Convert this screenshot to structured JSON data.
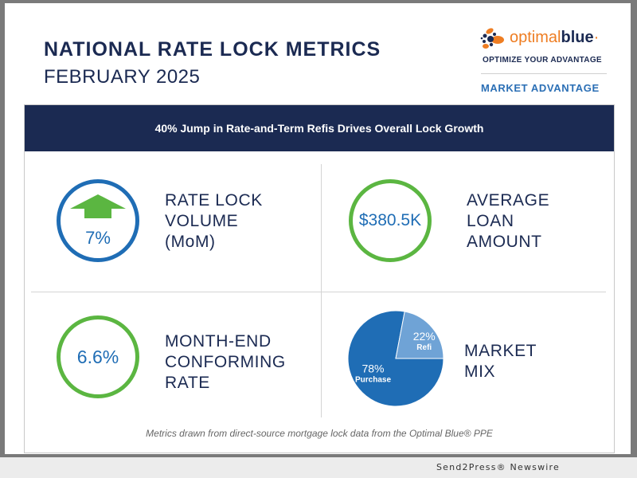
{
  "header": {
    "title": "NATIONAL RATE LOCK METRICS",
    "subtitle": "FEBRUARY 2025"
  },
  "brand": {
    "logo_word_1": "optimal",
    "logo_word_2": "blue",
    "logo_mark": "·",
    "tagline": "OPTIMIZE YOUR ADVANTAGE",
    "section": "MARKET ADVANTAGE",
    "colors": {
      "orange": "#ee7d22",
      "navy": "#1b2a52",
      "blue": "#1f6db5",
      "green": "#5bb641"
    }
  },
  "banner": {
    "headline": "40% Jump in Rate-and-Term Refis Drives Overall Lock Growth"
  },
  "metrics": [
    {
      "value": "7%",
      "icon": "up-arrow-icon",
      "label_lines": [
        "RATE LOCK",
        "VOLUME",
        "(MoM)"
      ]
    },
    {
      "value": "$380.5K",
      "label_lines": [
        "AVERAGE",
        "LOAN",
        "AMOUNT"
      ]
    },
    {
      "value": "6.6%",
      "label_lines": [
        "MONTH-END",
        "CONFORMING",
        "RATE"
      ]
    },
    {
      "label_lines": [
        "MARKET",
        "MIX"
      ]
    }
  ],
  "chart_data": {
    "type": "pie",
    "title": "MARKET MIX",
    "slices": [
      {
        "label": "Purchase",
        "value": 78,
        "display": "78%",
        "color": "#1f6db5"
      },
      {
        "label": "Refi",
        "value": 22,
        "display": "22%",
        "color": "#6fa3d6"
      }
    ]
  },
  "footnote": "Metrics drawn from direct-source mortgage lock data from the Optimal Blue® PPE",
  "credit": "Send2Press® Newswire"
}
